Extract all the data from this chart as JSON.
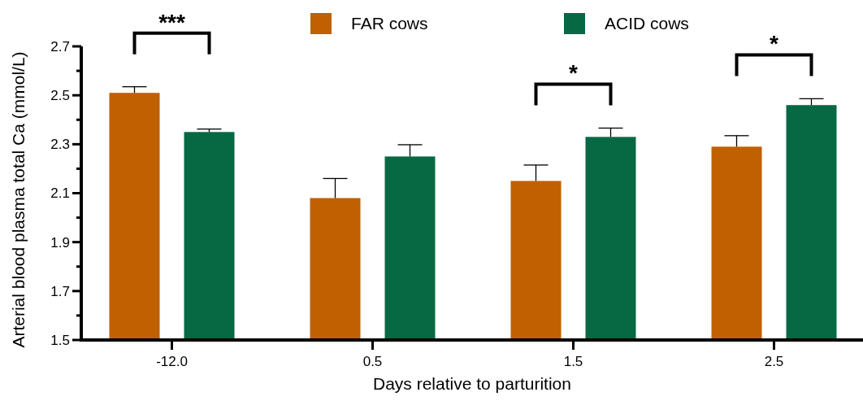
{
  "chart_data": {
    "type": "bar",
    "xlabel": "Days relative to parturition",
    "ylabel": "Arterial blood plasma total Ca (mmol/L)",
    "categories": [
      "-12.0",
      "0.5",
      "1.5",
      "2.5"
    ],
    "series": [
      {
        "name": "FAR cows",
        "color": "#c06000",
        "values": [
          2.51,
          2.08,
          2.15,
          2.29
        ],
        "errors": [
          [
            2.51,
            2.535
          ],
          [
            2.08,
            2.16
          ],
          [
            2.15,
            2.215
          ],
          [
            2.29,
            2.335
          ]
        ]
      },
      {
        "name": "ACID cows",
        "color": "#076944",
        "values": [
          2.35,
          2.25,
          2.33,
          2.46
        ],
        "errors": [
          [
            2.35,
            2.362
          ],
          [
            2.25,
            2.298
          ],
          [
            2.33,
            2.366
          ],
          [
            2.46,
            2.486
          ]
        ]
      }
    ],
    "ylim": [
      1.5,
      2.7
    ],
    "yticks": [
      1.5,
      {
        "value": 1.6,
        "label": null
      },
      1.7,
      {
        "value": 1.8,
        "label": null
      },
      1.9,
      {
        "value": 2.0,
        "label": null
      },
      2.1,
      {
        "value": 2.2,
        "label": null
      },
      2.3,
      {
        "value": 2.4,
        "label": null
      },
      2.5,
      {
        "value": 2.6,
        "label": null
      },
      2.7
    ],
    "annotations": [
      "***",
      "*",
      "*"
    ],
    "legend": "top",
    "grid": false
  }
}
